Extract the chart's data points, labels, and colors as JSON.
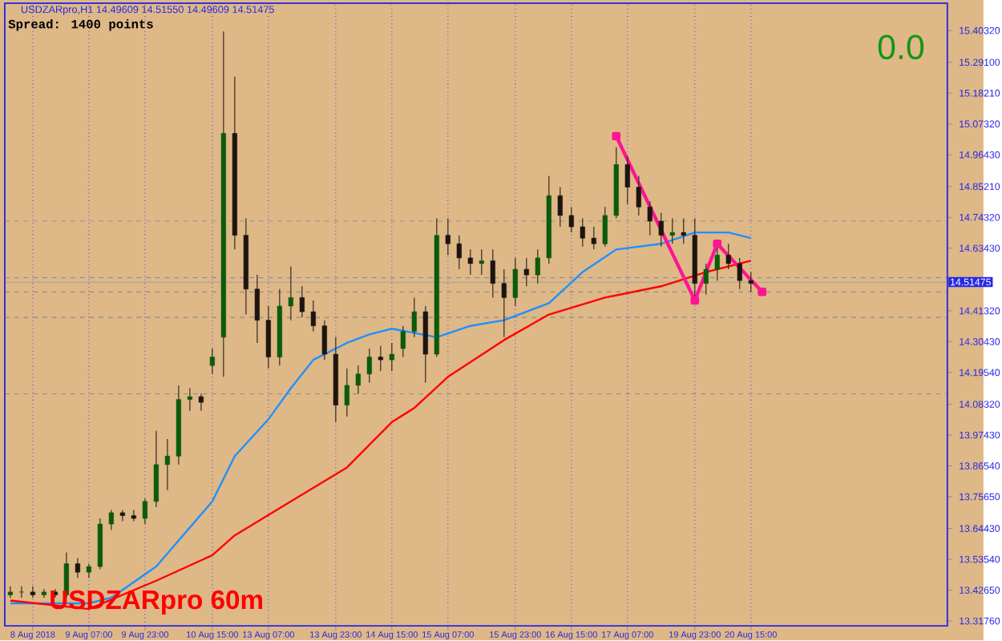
{
  "chart_data": {
    "type": "candlestick",
    "title": "USDZARpro,H1 14.49609 14.51550 14.49609 14.51475",
    "annotations": [
      "Spread: 1400 points",
      "0.0",
      "USDZARpro  60m"
    ],
    "categories": [
      null,
      null,
      "8 Aug 2018",
      null,
      null,
      null,
      null,
      "9 Aug 07:00",
      null,
      null,
      null,
      null,
      "9 Aug 23:00",
      null,
      null,
      null,
      null,
      null,
      "10 Aug 15:00",
      null,
      null,
      null,
      null,
      "13 Aug 07:00",
      null,
      null,
      null,
      null,
      null,
      "13 Aug 23:00",
      null,
      null,
      null,
      null,
      "14 Aug 15:00",
      null,
      null,
      null,
      null,
      "15 Aug 07:00",
      null,
      null,
      null,
      null,
      null,
      "15 Aug 23:00",
      null,
      null,
      null,
      null,
      "16 Aug 15:00",
      null,
      null,
      null,
      null,
      "17 Aug 07:00",
      null,
      null,
      null,
      null,
      null,
      "19 Aug 23:00",
      null,
      null,
      null,
      null,
      "20 Aug 15:00",
      null,
      null,
      null,
      null,
      null,
      null,
      null,
      null,
      null,
      null,
      null,
      null,
      null,
      null,
      null,
      null,
      null
    ],
    "ohlc": [
      [
        13.41,
        13.44,
        13.4,
        13.42
      ],
      [
        13.42,
        13.44,
        13.4,
        13.42
      ],
      [
        13.42,
        13.44,
        13.4,
        13.41
      ],
      [
        13.41,
        13.43,
        13.4,
        13.42
      ],
      [
        13.42,
        13.43,
        13.4,
        13.41
      ],
      [
        13.41,
        13.56,
        13.4,
        13.52
      ],
      [
        13.52,
        13.54,
        13.47,
        13.49
      ],
      [
        13.49,
        13.52,
        13.47,
        13.51
      ],
      [
        13.51,
        13.68,
        13.5,
        13.66
      ],
      [
        13.66,
        13.71,
        13.64,
        13.7
      ],
      [
        13.7,
        13.71,
        13.67,
        13.69
      ],
      [
        13.69,
        13.71,
        13.67,
        13.68
      ],
      [
        13.68,
        13.75,
        13.66,
        13.74
      ],
      [
        13.74,
        13.99,
        13.72,
        13.87
      ],
      [
        13.87,
        13.96,
        13.78,
        13.9
      ],
      [
        13.9,
        14.15,
        13.87,
        14.1
      ],
      [
        14.1,
        14.14,
        14.06,
        14.11
      ],
      [
        14.11,
        14.12,
        14.06,
        14.09
      ],
      [
        14.22,
        14.28,
        14.19,
        14.25
      ],
      [
        14.32,
        15.4,
        14.18,
        15.04
      ],
      [
        15.04,
        15.24,
        14.63,
        14.68
      ],
      [
        14.68,
        14.74,
        14.4,
        14.49
      ],
      [
        14.49,
        14.54,
        14.3,
        14.38
      ],
      [
        14.38,
        14.43,
        14.21,
        14.25
      ],
      [
        14.25,
        14.49,
        14.22,
        14.43
      ],
      [
        14.43,
        14.57,
        14.38,
        14.46
      ],
      [
        14.46,
        14.5,
        14.39,
        14.41
      ],
      [
        14.41,
        14.45,
        14.34,
        14.36
      ],
      [
        14.36,
        14.38,
        14.24,
        14.26
      ],
      [
        14.26,
        14.32,
        14.02,
        14.08
      ],
      [
        14.08,
        14.21,
        14.04,
        14.15
      ],
      [
        14.15,
        14.22,
        14.12,
        14.19
      ],
      [
        14.19,
        14.28,
        14.16,
        14.25
      ],
      [
        14.25,
        14.29,
        14.2,
        14.24
      ],
      [
        14.24,
        14.3,
        14.2,
        14.26
      ],
      [
        14.28,
        14.36,
        14.25,
        14.34
      ],
      [
        14.34,
        14.46,
        14.32,
        14.41
      ],
      [
        14.41,
        14.43,
        14.16,
        14.26
      ],
      [
        14.26,
        14.74,
        14.25,
        14.68
      ],
      [
        14.68,
        14.74,
        14.61,
        14.65
      ],
      [
        14.65,
        14.68,
        14.56,
        14.6
      ],
      [
        14.6,
        14.63,
        14.54,
        14.58
      ],
      [
        14.58,
        14.63,
        14.54,
        14.59
      ],
      [
        14.59,
        14.63,
        14.46,
        14.51
      ],
      [
        14.51,
        14.56,
        14.32,
        14.46
      ],
      [
        14.46,
        14.6,
        14.43,
        14.56
      ],
      [
        14.56,
        14.6,
        14.5,
        14.54
      ],
      [
        14.54,
        14.63,
        14.51,
        14.6
      ],
      [
        14.6,
        14.89,
        14.58,
        14.82
      ],
      [
        14.82,
        14.85,
        14.71,
        14.75
      ],
      [
        14.75,
        14.78,
        14.69,
        14.71
      ],
      [
        14.71,
        14.74,
        14.64,
        14.67
      ],
      [
        14.67,
        14.71,
        14.63,
        14.65
      ],
      [
        14.65,
        14.78,
        14.64,
        14.75
      ],
      [
        14.75,
        14.99,
        14.74,
        14.93
      ],
      [
        14.93,
        14.96,
        14.79,
        14.85
      ],
      [
        14.85,
        14.89,
        14.75,
        14.78
      ],
      [
        14.78,
        14.8,
        14.68,
        14.73
      ],
      [
        14.73,
        14.76,
        14.64,
        14.68
      ],
      [
        14.68,
        14.74,
        14.65,
        14.69
      ],
      [
        14.69,
        14.74,
        14.65,
        14.68
      ],
      [
        14.68,
        14.74,
        14.45,
        14.51
      ],
      [
        14.51,
        14.58,
        14.47,
        14.56
      ],
      [
        14.56,
        14.64,
        14.52,
        14.61
      ],
      [
        14.61,
        14.65,
        14.56,
        14.58
      ],
      [
        14.58,
        14.6,
        14.49,
        14.52
      ],
      [
        14.52,
        14.55,
        14.48,
        14.51
      ],
      null,
      null,
      null,
      null,
      null,
      null,
      null,
      null,
      null,
      null,
      null,
      null,
      null,
      null,
      null,
      null,
      null
    ],
    "series": [
      {
        "type": "line",
        "color": "#1e90ff",
        "values": [
          13.38,
          null,
          null,
          null,
          13.38,
          null,
          null,
          13.38,
          null,
          13.4,
          null,
          null,
          null,
          13.51,
          null,
          null,
          null,
          null,
          13.74,
          null,
          13.9,
          null,
          null,
          14.03,
          null,
          14.14,
          null,
          14.24,
          null,
          null,
          14.3,
          null,
          14.33,
          null,
          14.35,
          null,
          null,
          null,
          14.32,
          null,
          null,
          14.36,
          null,
          null,
          14.38,
          null,
          null,
          null,
          14.44,
          null,
          null,
          14.55,
          null,
          null,
          14.63,
          null,
          null,
          null,
          14.65,
          null,
          null,
          14.69,
          null,
          null,
          14.69,
          null,
          14.67,
          null,
          null,
          null,
          null,
          null,
          null,
          null,
          null,
          null,
          null,
          null,
          null,
          null,
          null,
          null,
          null,
          null
        ]
      },
      {
        "type": "line",
        "color": "#ff0000",
        "values": [
          13.39,
          null,
          null,
          null,
          null,
          null,
          null,
          13.36,
          null,
          null,
          null,
          null,
          null,
          13.46,
          null,
          null,
          null,
          null,
          13.55,
          null,
          13.62,
          null,
          null,
          null,
          null,
          13.74,
          null,
          null,
          null,
          null,
          13.86,
          null,
          null,
          null,
          14.02,
          null,
          14.07,
          null,
          null,
          14.18,
          null,
          null,
          null,
          null,
          14.31,
          null,
          null,
          null,
          14.4,
          null,
          null,
          null,
          null,
          14.46,
          null,
          null,
          null,
          null,
          14.5,
          null,
          null,
          null,
          14.55,
          null,
          null,
          null,
          14.59,
          null,
          null,
          null,
          null,
          null,
          null,
          null,
          null,
          null,
          null,
          null,
          null,
          null,
          null,
          null,
          null,
          null
        ]
      },
      {
        "type": "line",
        "color": "#ff1493",
        "marker": "square",
        "values": [
          null,
          null,
          null,
          null,
          null,
          null,
          null,
          null,
          null,
          null,
          null,
          null,
          null,
          null,
          null,
          null,
          null,
          null,
          null,
          null,
          null,
          null,
          null,
          null,
          null,
          null,
          null,
          null,
          null,
          null,
          null,
          null,
          null,
          null,
          null,
          null,
          null,
          null,
          null,
          null,
          null,
          null,
          null,
          null,
          null,
          null,
          null,
          null,
          null,
          null,
          null,
          null,
          null,
          null,
          15.03,
          null,
          null,
          null,
          null,
          null,
          null,
          14.45,
          null,
          14.65,
          null,
          null,
          null,
          14.48,
          null,
          null,
          null,
          null,
          null,
          null,
          null,
          null,
          null,
          null,
          null,
          null,
          null,
          null,
          null,
          null
        ]
      }
    ],
    "ref_lines": [
      {
        "axis": "y",
        "value": 14.73,
        "color": "#8c8c8c",
        "line_style": "dashed"
      },
      {
        "axis": "y",
        "value": 14.53,
        "color": "#8c8c8c",
        "line_style": "dashed"
      },
      {
        "axis": "y",
        "value": 14.48,
        "color": "#8c8c8c",
        "line_style": "dashed"
      },
      {
        "axis": "y",
        "value": 14.39,
        "color": "#8c8c8c",
        "line_style": "dashed"
      },
      {
        "axis": "y",
        "value": 14.12,
        "color": "#8c8c8c",
        "line_style": "dashed"
      },
      {
        "axis": "y",
        "value": 14.51475,
        "label": "14.51475",
        "color": "#a0a0a0",
        "line_style": "solid"
      }
    ],
    "grid": "x",
    "ylim": [
      13.3,
      15.5
    ],
    "yticks": [
      {
        "value": 15.4032,
        "label": "15.40320"
      },
      {
        "value": 15.291,
        "label": "15.29100"
      },
      {
        "value": 15.1821,
        "label": "15.18210"
      },
      {
        "value": 15.0732,
        "label": "15.07320"
      },
      {
        "value": 14.9643,
        "label": "14.96430"
      },
      {
        "value": 14.8521,
        "label": "14.85210"
      },
      {
        "value": 14.7432,
        "label": "14.74320"
      },
      {
        "value": 14.6343,
        "label": "14.63430"
      },
      {
        "value": 14.4132,
        "label": "14.41320"
      },
      {
        "value": 14.3043,
        "label": "14.30430"
      },
      {
        "value": 14.1954,
        "label": "14.19540"
      },
      {
        "value": 14.0832,
        "label": "14.08320"
      },
      {
        "value": 13.9743,
        "label": "13.97430"
      },
      {
        "value": 13.8654,
        "label": "13.86540"
      },
      {
        "value": 13.7565,
        "label": "13.75650"
      },
      {
        "value": 13.6443,
        "label": "13.64430"
      },
      {
        "value": 13.5354,
        "label": "13.53540"
      },
      {
        "value": 13.4265,
        "label": "13.42650"
      },
      {
        "value": 13.3176,
        "label": "13.31760"
      }
    ]
  }
}
